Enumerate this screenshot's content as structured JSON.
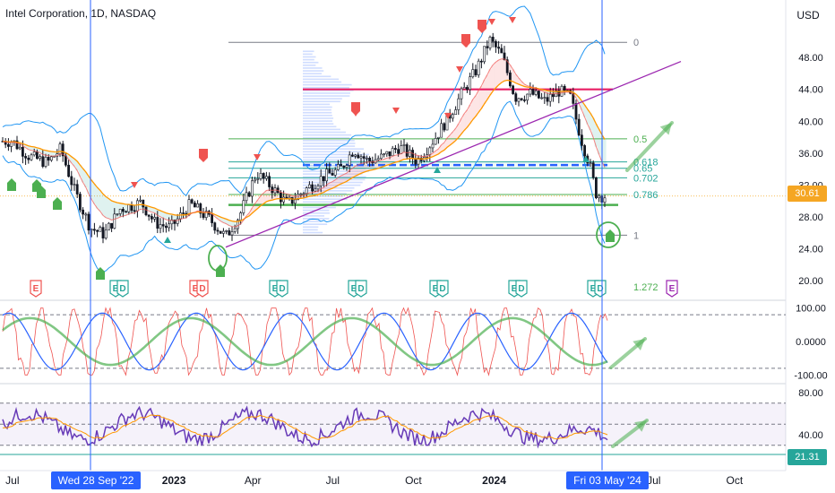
{
  "header": {
    "title": "Intel Corporation, 1D, NASDAQ",
    "currency": "USD"
  },
  "tags": {
    "last_price": "30.61",
    "rsi_value": "21.31",
    "date_left": "Wed 28 Sep '22",
    "date_right": "Fri 03 May '24"
  },
  "colors": {
    "accent": "#2962ff",
    "price_tag": "#f5a623",
    "rsi_tag": "#26a69a",
    "up": "#26a69a",
    "down": "#ef5350",
    "fib": "#4caf50",
    "bollinger": "#2196f3",
    "ema": "#ff9800",
    "trendline": "#9c27b0",
    "rsi_line": "#673ab7"
  },
  "chart_data": [
    {
      "type": "line",
      "title": "Intel Corporation, 1D, NASDAQ",
      "ylabel": "USD",
      "x_ticks": [
        "Jul",
        "2023",
        "Apr",
        "Jul",
        "Oct",
        "2024",
        "Jul",
        "Oct"
      ],
      "y_ticks": [
        "48.00",
        "44.00",
        "40.00",
        "36.00",
        "32.00",
        "28.00",
        "24.00",
        "20.00"
      ],
      "ylim": [
        18,
        52
      ],
      "series": [
        {
          "dates": [
            "2022-07-01",
            "2022-07-20",
            "2022-08-10",
            "2022-08-25",
            "2022-09-10",
            "2022-09-28",
            "2022-10-14",
            "2022-11-01",
            "2022-11-25",
            "2022-12-10",
            "2022-12-28",
            "2023-01-20",
            "2023-02-10",
            "2023-03-01",
            "2023-03-17",
            "2023-04-05",
            "2023-04-20",
            "2023-05-10",
            "2023-06-01",
            "2023-06-20",
            "2023-07-10",
            "2023-07-25",
            "2023-08-10",
            "2023-08-28",
            "2023-09-15",
            "2023-10-05",
            "2023-10-25",
            "2023-11-10",
            "2023-11-28",
            "2023-12-12",
            "2023-12-27",
            "2024-01-10",
            "2024-01-25",
            "2024-02-12",
            "2024-02-28",
            "2024-03-15",
            "2024-03-28",
            "2024-04-10",
            "2024-04-19",
            "2024-04-26",
            "2024-05-03"
          ],
          "values": [
            37.5,
            35.6,
            34.8,
            36.5,
            31.2,
            26.6,
            25.8,
            29.0,
            29.8,
            27.3,
            26.6,
            29.6,
            27.8,
            25.5,
            28.2,
            33.5,
            32.0,
            29.6,
            31.5,
            33.0,
            34.0,
            36.5,
            35.0,
            35.5,
            36.8,
            35.0,
            37.8,
            40.5,
            44.0,
            46.5,
            50.2,
            48.2,
            43.0,
            43.5,
            42.5,
            43.8,
            43.0,
            37.5,
            34.5,
            31.0,
            30.61
          ]
        }
      ],
      "fibonacci": [
        {
          "level": "0",
          "price": 49.9
        },
        {
          "level": "0.5",
          "price": 37.8
        },
        {
          "level": "0.618",
          "price": 34.9
        },
        {
          "level": "0.65",
          "price": 34.1
        },
        {
          "level": "0.702",
          "price": 32.9
        },
        {
          "level": "0.786",
          "price": 30.8
        },
        {
          "level": "1",
          "price": 25.7
        },
        {
          "level": "1.272",
          "price": 19.2
        }
      ],
      "resistance_price": 44.0,
      "annotations": {
        "earnings_marker": "E",
        "dividend_marker": "D"
      }
    },
    {
      "type": "line",
      "title": "",
      "y_ticks": [
        "100.00",
        "0.0000",
        "-100.00"
      ],
      "ylim": [
        -120,
        120
      ]
    },
    {
      "type": "line",
      "title": "",
      "y_ticks": [
        "80.00",
        "40.00"
      ],
      "ylim": [
        10,
        90
      ],
      "last_value": 21.31
    }
  ]
}
